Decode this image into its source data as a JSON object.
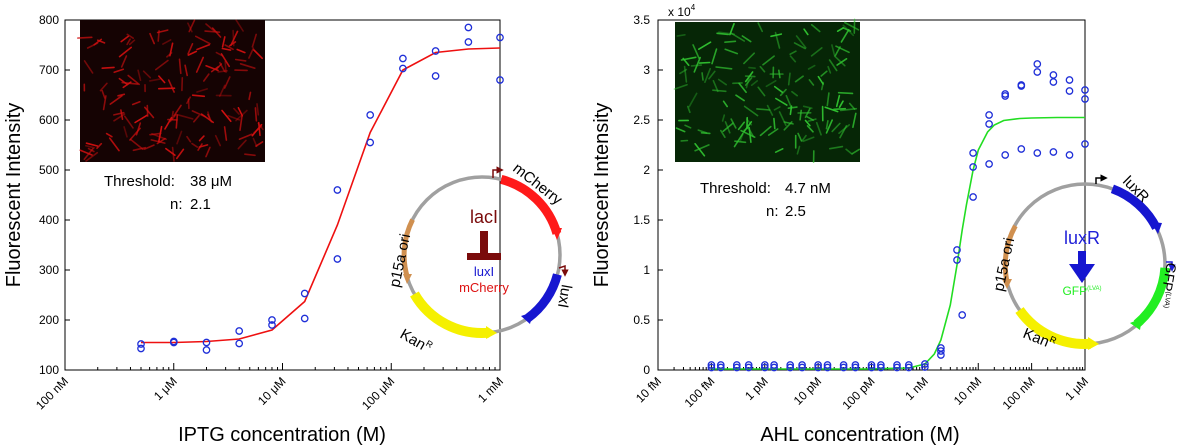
{
  "panels": [
    {
      "xlabel": "IPTG concentration (M)",
      "ylabel": "Fluorescent Intensity",
      "yticks": [
        "100",
        "200",
        "300",
        "400",
        "500",
        "600",
        "700",
        "800"
      ],
      "xticks": [
        "100 nM",
        "1 μM",
        "10 μM",
        "100 μM",
        "1 mM"
      ],
      "threshold_label": "Threshold:",
      "threshold_value": "38 μM",
      "n_label": "n:",
      "n_value": "2.1",
      "micrograph_color": "#d01010",
      "fit_color": "#ee1010",
      "plasmid": {
        "origin": "p15a ori",
        "resistance": "Kan",
        "resistance_sup": "R",
        "gene1": "mCherry",
        "gene2": "luxI",
        "regulator": "lacI",
        "target1": "luxI",
        "target2": "mCherry"
      }
    },
    {
      "xlabel": "AHL concentration (M)",
      "ylabel": "Fluorescent Intensity",
      "yticks": [
        "0",
        "0.5",
        "1",
        "1.5",
        "2",
        "2.5",
        "3",
        "3.5"
      ],
      "y_multiplier_base": "x 10",
      "y_multiplier_exp": "4",
      "xticks": [
        "10 fM",
        "100 fM",
        "1 pM",
        "10 pM",
        "100 pM",
        "1 nM",
        "10 nM",
        "100 nM",
        "1 μM"
      ],
      "threshold_label": "Threshold:",
      "threshold_value": "4.7 nM",
      "n_label": "n:",
      "n_value": "2.5",
      "micrograph_color": "#30c030",
      "fit_color": "#22dd22",
      "plasmid": {
        "origin": "p15a ori",
        "resistance": "Kan",
        "resistance_sup": "R",
        "gene1": "luxR",
        "gene2": "GFP",
        "gene2_sup": "(LVA)",
        "regulator": "luxR",
        "target": "GFP",
        "target_sup": "(LVA)"
      }
    }
  ],
  "chart_data": [
    {
      "type": "scatter",
      "title": "",
      "xlabel": "IPTG concentration (M)",
      "ylabel": "Fluorescent Intensity",
      "xscale": "log",
      "xlim": [
        1e-07,
        0.001
      ],
      "ylim": [
        100,
        800
      ],
      "grid": false,
      "marker_color": "#1f2fd8",
      "series": [
        {
          "x": [
            5e-07,
            5e-07,
            1e-06,
            1e-06,
            2e-06,
            2e-06,
            4e-06,
            4e-06,
            8e-06,
            8e-06,
            1.6e-05,
            1.6e-05,
            3.2e-05,
            3.2e-05,
            6.4e-05,
            6.4e-05,
            0.000128,
            0.000128,
            0.000256,
            0.000256,
            0.000512,
            0.000512,
            0.001,
            0.001
          ],
          "values": [
            152,
            143,
            157,
            155,
            155,
            140,
            178,
            153,
            200,
            190,
            253,
            203,
            460,
            322,
            610,
            555,
            723,
            703,
            738,
            688,
            785,
            756,
            765,
            680
          ]
        },
        {
          "x": [
            5e-07,
            1e-06,
            2e-06,
            4e-06,
            8e-06,
            1.6e-05,
            3.2e-05,
            6.4e-05,
            0.000128,
            0.000256,
            0.000512,
            0.001
          ],
          "values": [
            155,
            155,
            157,
            162,
            180,
            237,
            390,
            575,
            700,
            735,
            742,
            744
          ]
        }
      ]
    },
    {
      "type": "scatter",
      "title": "",
      "xlabel": "AHL concentration (M)",
      "ylabel": "Fluorescent Intensity",
      "xscale": "log",
      "xlim": [
        1e-14,
        1e-06
      ],
      "ylim": [
        0,
        35000
      ],
      "grid": false,
      "marker_color": "#1f2fd8",
      "series": [
        {
          "x": [
            1e-13,
            1e-13,
            1.5e-13,
            1.5e-13,
            3e-13,
            3e-13,
            5e-13,
            5e-13,
            1e-12,
            1e-12,
            1.5e-12,
            1.5e-12,
            3e-12,
            3e-12,
            5e-12,
            5e-12,
            1e-11,
            1e-11,
            1.5e-11,
            1.5e-11,
            3e-11,
            3e-11,
            5e-11,
            5e-11,
            1e-10,
            1e-10,
            1.5e-10,
            1.5e-10,
            3e-10,
            3e-10,
            5e-10,
            5e-10,
            1e-09,
            1e-09,
            2e-09,
            2e-09,
            2e-09,
            4e-09,
            4e-09,
            5e-09,
            8e-09,
            8e-09,
            8e-09,
            1.6e-08,
            1.6e-08,
            1.6e-08,
            3.2e-08,
            3.2e-08,
            3.2e-08,
            6.4e-08,
            6.4e-08,
            6.4e-08,
            1.28e-07,
            1.28e-07,
            1.28e-07,
            2.56e-07,
            2.56e-07,
            2.56e-07,
            5.12e-07,
            5.12e-07,
            5.12e-07,
            1e-06,
            1e-06,
            1e-06
          ],
          "values": [
            500,
            250,
            500,
            250,
            500,
            250,
            500,
            250,
            500,
            250,
            500,
            250,
            500,
            250,
            500,
            250,
            500,
            250,
            500,
            250,
            500,
            250,
            500,
            250,
            500,
            250,
            500,
            250,
            500,
            250,
            500,
            250,
            600,
            300,
            2200,
            1500,
            1900,
            12000,
            11000,
            5500,
            17300,
            20300,
            21700,
            25500,
            24600,
            20600,
            27600,
            27400,
            21500,
            28500,
            28400,
            22100,
            30600,
            29800,
            21700,
            29500,
            28800,
            21800,
            29000,
            27900,
            21500,
            28000,
            27100,
            22600
          ]
        },
        {
          "x": [
            1e-13,
            1e-12,
            1e-11,
            1e-10,
            5e-10,
            1e-09,
            1.5e-09,
            2e-09,
            3e-09,
            4e-09,
            5e-09,
            6e-09,
            8e-09,
            1e-08,
            1.5e-08,
            2e-08,
            3e-08,
            6e-08,
            1e-07,
            3e-07,
            1e-06
          ],
          "values": [
            100,
            100,
            100,
            110,
            200,
            600,
            1600,
            3000,
            6500,
            10500,
            14000,
            16500,
            20000,
            22000,
            23800,
            24500,
            24950,
            25150,
            25200,
            25250,
            25250
          ]
        }
      ]
    }
  ]
}
